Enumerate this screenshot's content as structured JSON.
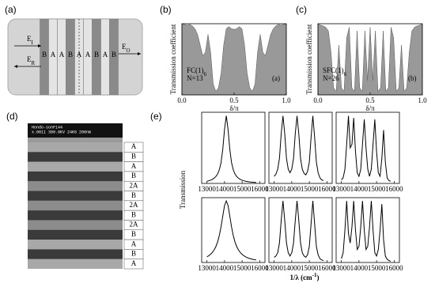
{
  "panel_a": {
    "label": "(a)",
    "layers": [
      "B",
      "A",
      "A",
      "B",
      "A",
      "A",
      "B",
      "A",
      "B"
    ],
    "incident": {
      "main": "E",
      "sub": "I"
    },
    "reflected": {
      "main": "E",
      "sub": "R"
    },
    "output": {
      "main": "E",
      "sub": "O"
    }
  },
  "panel_d": {
    "label": "(d)",
    "micrograph_info": [
      "Hondo-sonF144",
      "x.0011 300.0KV 24K6 200nm"
    ],
    "layers": [
      "A",
      "B",
      "A",
      "B",
      "2A",
      "B",
      "2A",
      "B",
      "2A",
      "B",
      "A",
      "B",
      "A"
    ]
  },
  "panel_e": {
    "label": "(e)",
    "ylabel": "Transmission",
    "xlabel": {
      "text": "1/λ (cm",
      "sup": "-1",
      "close": ")"
    }
  },
  "chart_data": [
    {
      "type": "area",
      "label": "(b)",
      "ylabel": "Transmission coefficient",
      "xlabel": "δ/π",
      "color": "#999999",
      "annotations": [
        {
          "text": "FC(1)",
          "sub": "6"
        },
        {
          "text": "N=13"
        },
        {
          "text": "(a)"
        }
      ],
      "x": [
        0,
        0.025,
        0.05,
        0.075,
        0.1,
        0.125,
        0.15,
        0.175,
        0.2,
        0.225,
        0.25,
        0.275,
        0.3,
        0.325,
        0.35,
        0.375,
        0.4,
        0.425,
        0.45,
        0.475,
        0.5,
        0.525,
        0.55,
        0.575,
        0.6,
        0.625,
        0.65,
        0.675,
        0.7,
        0.725,
        0.75,
        0.775,
        0.8,
        0.825,
        0.85,
        0.875,
        0.9,
        0.925,
        0.95,
        0.975,
        1
      ],
      "values": [
        1,
        0.99,
        0.98,
        0.99,
        0.97,
        0.93,
        0.85,
        0.7,
        0.55,
        0.6,
        0.85,
        0.6,
        0.15,
        0.05,
        0.1,
        0.3,
        0.7,
        0.93,
        0.96,
        0.93,
        0.92,
        0.93,
        0.96,
        0.93,
        0.7,
        0.3,
        0.1,
        0.05,
        0.15,
        0.6,
        0.85,
        0.6,
        0.55,
        0.7,
        0.85,
        0.93,
        0.97,
        0.99,
        0.98,
        0.99,
        1
      ],
      "xlim": [
        0,
        1
      ],
      "ylim": [
        0,
        1
      ],
      "xticks": [
        {
          "value": 0,
          "label": "0.0"
        },
        {
          "value": 0.5,
          "label": "0.5"
        },
        {
          "value": 1,
          "label": "1.0"
        }
      ]
    },
    {
      "type": "area",
      "label": "(c)",
      "ylabel": "Transmission coefficient",
      "xlabel": "δ/π",
      "color": "#999999",
      "annotations": [
        {
          "text": "SFC(1)",
          "sub": "6"
        },
        {
          "text": "N=26"
        },
        {
          "text": "(b)"
        }
      ],
      "x": [
        0,
        0.025,
        0.05,
        0.075,
        0.1,
        0.125,
        0.15,
        0.175,
        0.2,
        0.225,
        0.25,
        0.275,
        0.3,
        0.325,
        0.35,
        0.375,
        0.4,
        0.425,
        0.45,
        0.475,
        0.5,
        0.525,
        0.55,
        0.575,
        0.6,
        0.625,
        0.65,
        0.675,
        0.7,
        0.725,
        0.75,
        0.775,
        0.8,
        0.825,
        0.85,
        0.875,
        0.9,
        0.925,
        0.95,
        0.975,
        1
      ],
      "values": [
        1,
        0.98,
        0.97,
        0.95,
        0.9,
        0.6,
        0.1,
        0.05,
        0.7,
        0.1,
        0.05,
        0.8,
        0.95,
        0.1,
        0.05,
        0.9,
        0.1,
        0.05,
        0.9,
        0.2,
        0.95,
        0.2,
        0.9,
        0.05,
        0.1,
        0.9,
        0.05,
        0.1,
        0.95,
        0.8,
        0.05,
        0.1,
        0.7,
        0.05,
        0.1,
        0.6,
        0.9,
        0.95,
        0.97,
        0.98,
        1
      ],
      "xlim": [
        0,
        1
      ],
      "ylim": [
        0,
        1
      ],
      "xticks": [
        {
          "value": 0,
          "label": "0.0"
        },
        {
          "value": 0.5,
          "label": "0.5"
        },
        {
          "value": 1,
          "label": "1.0"
        }
      ]
    },
    {
      "type": "line",
      "color": "#000000",
      "xlim": [
        12700,
        16300
      ],
      "ylim": [
        0,
        1
      ],
      "xticks": [
        13000,
        14000,
        15000,
        16000
      ],
      "x": [
        13000,
        13100,
        13200,
        13300,
        13400,
        13500,
        13600,
        13700,
        13800,
        13900,
        14000,
        14100,
        14200,
        14300,
        14400,
        14500,
        14600,
        14700,
        14800,
        14900,
        15000,
        15100,
        15200,
        15300,
        15400,
        15500,
        15600,
        15700,
        15800,
        15900,
        16000
      ],
      "values": [
        0.03,
        0.037,
        0.045,
        0.056,
        0.072,
        0.095,
        0.13,
        0.19,
        0.29,
        0.48,
        0.76,
        0.95,
        0.76,
        0.48,
        0.29,
        0.19,
        0.13,
        0.095,
        0.072,
        0.056,
        0.045,
        0.037,
        0.03,
        0.026,
        0.022,
        0.019,
        0.017,
        0.015,
        0.013,
        null,
        null
      ]
    },
    {
      "type": "line",
      "color": "#000000",
      "xlim": [
        12700,
        16300
      ],
      "ylim": [
        0,
        1
      ],
      "xticks": [
        13000,
        14000,
        15000,
        16000
      ],
      "x": [
        13000,
        13100,
        13200,
        13300,
        13400,
        13500,
        13600,
        13700,
        13800,
        13900,
        14000,
        14100,
        14200,
        14300,
        14400,
        14500,
        14600,
        14700,
        14800,
        14900,
        15000,
        15100,
        15200,
        15300,
        15400,
        15500,
        15600,
        15700,
        15800,
        15900,
        16000
      ],
      "values": [
        0.1,
        0.13,
        0.2,
        0.35,
        0.7,
        0.95,
        0.7,
        0.35,
        0.2,
        0.15,
        0.2,
        0.35,
        0.7,
        0.95,
        0.7,
        0.35,
        0.2,
        0.14,
        0.12,
        0.17,
        0.3,
        0.65,
        0.95,
        0.65,
        0.3,
        0.15,
        0.08,
        0.05,
        0.04,
        null,
        null
      ]
    },
    {
      "type": "line",
      "color": "#000000",
      "xlim": [
        12700,
        16300
      ],
      "ylim": [
        0,
        1
      ],
      "xticks": [
        13000,
        14000,
        15000,
        16000
      ],
      "x": [
        13000,
        13100,
        13200,
        13300,
        13400,
        13500,
        13600,
        13700,
        13800,
        13900,
        14000,
        14100,
        14200,
        14300,
        14400,
        14500,
        14600,
        14700,
        14800,
        14900,
        15000,
        15100,
        15200,
        15300,
        15400,
        15500,
        15600,
        15700,
        15800,
        15900,
        16000
      ],
      "values": [
        0.05,
        0.08,
        0.2,
        0.55,
        0.95,
        0.5,
        0.55,
        0.92,
        0.45,
        0.15,
        0.1,
        0.2,
        0.55,
        0.9,
        0.5,
        0.2,
        0.1,
        0.2,
        0.55,
        0.9,
        0.45,
        0.15,
        0.1,
        0.35,
        0.75,
        0.3,
        0.08,
        0.04,
        0.03,
        null,
        null
      ]
    },
    {
      "type": "line",
      "color": "#000000",
      "xlim": [
        12700,
        16300
      ],
      "ylim": [
        0,
        1
      ],
      "xticks": [
        13000,
        14000,
        15000,
        16000
      ],
      "x": [
        13000,
        13100,
        13200,
        13300,
        13400,
        13500,
        13600,
        13700,
        13800,
        13900,
        14000,
        14100,
        14200,
        14300,
        14400,
        14500,
        14600,
        14700,
        14800,
        14900,
        15000,
        15100,
        15200,
        15300,
        15400,
        15500,
        15600,
        15700,
        15800,
        15900,
        16000
      ],
      "values": [
        0.087,
        0.104,
        0.125,
        0.153,
        0.19,
        0.241,
        0.312,
        0.412,
        0.548,
        0.716,
        0.878,
        0.95,
        0.878,
        0.716,
        0.548,
        0.412,
        0.312,
        0.241,
        0.19,
        0.153,
        0.125,
        0.104,
        0.087,
        0.074,
        0.064,
        0.056,
        0.049,
        0.043,
        0.039,
        null,
        null
      ]
    },
    {
      "type": "line",
      "color": "#000000",
      "xlim": [
        12700,
        16300
      ],
      "ylim": [
        0,
        1
      ],
      "xticks": [
        13000,
        14000,
        15000,
        16000
      ],
      "x": [
        13000,
        13100,
        13200,
        13300,
        13400,
        13500,
        13600,
        13700,
        13800,
        13900,
        14000,
        14100,
        14200,
        14300,
        14400,
        14500,
        14600,
        14700,
        14800,
        14900,
        15000,
        15100,
        15200,
        15300,
        15400,
        15500,
        15600,
        15700,
        15800,
        15900,
        16000
      ],
      "values": [
        0.08,
        0.1,
        0.15,
        0.3,
        0.65,
        0.95,
        0.65,
        0.3,
        0.15,
        0.1,
        0.15,
        0.3,
        0.65,
        0.95,
        0.65,
        0.3,
        0.15,
        0.1,
        0.08,
        0.12,
        0.25,
        0.6,
        0.95,
        0.6,
        0.25,
        0.12,
        0.06,
        0.04,
        0.03,
        null,
        null
      ]
    },
    {
      "type": "line",
      "color": "#000000",
      "xlim": [
        12700,
        16300
      ],
      "ylim": [
        0,
        1
      ],
      "xticks": [
        13000,
        14000,
        15000,
        16000
      ],
      "x": [
        13000,
        13100,
        13200,
        13300,
        13400,
        13500,
        13600,
        13700,
        13800,
        13900,
        14000,
        14100,
        14200,
        14300,
        14400,
        14500,
        14600,
        14700,
        14800,
        14900,
        15000,
        15100,
        15200,
        15300,
        15400,
        15500,
        15600,
        15700,
        15800,
        15900,
        16000
      ],
      "values": [
        0.06,
        0.15,
        0.5,
        0.95,
        0.45,
        0.3,
        0.55,
        0.95,
        0.5,
        0.2,
        0.25,
        0.55,
        0.95,
        0.5,
        0.2,
        0.25,
        0.55,
        0.95,
        0.5,
        0.15,
        0.1,
        0.2,
        0.5,
        0.9,
        0.35,
        0.1,
        0.05,
        0.03,
        0.02,
        null,
        null
      ]
    }
  ]
}
